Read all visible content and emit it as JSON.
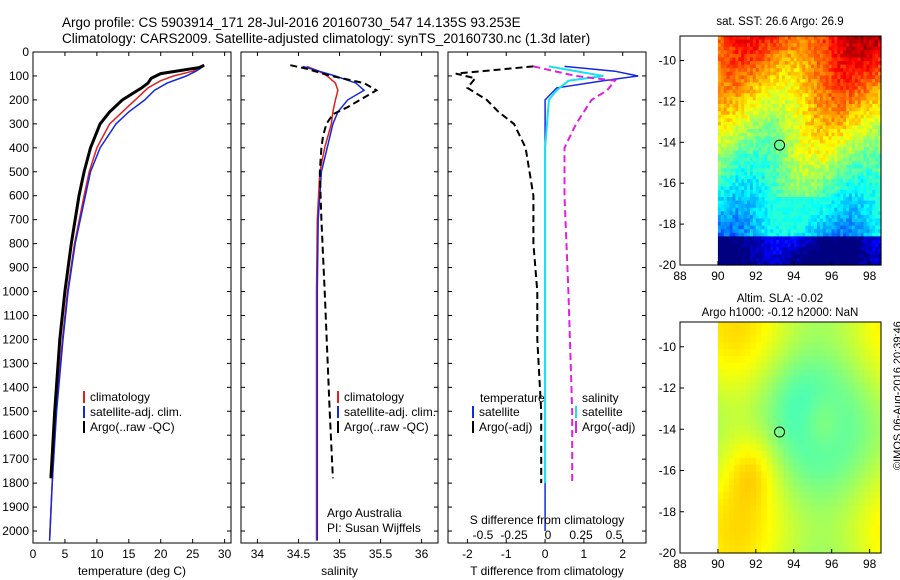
{
  "header": {
    "line1": "Argo profile: CS 5903914_171 28-Jul-2016 20160730_547 14.135S 93.253E",
    "line2": "Climatology: CARS2009. Satellite-adjusted climatology: synTS_20160730.nc (1.3d later)"
  },
  "colors": {
    "climatology": "#e0201c",
    "satellite": "#1428e0",
    "argo": "#000000",
    "sat_salinity": "#18e0f0",
    "argo_adj_salinity": "#e020e0"
  },
  "chart_data": [
    {
      "type": "line",
      "xlabel": "temperature (deg C)",
      "xlim": [
        0,
        31
      ],
      "ylim": [
        2050,
        0
      ],
      "xticks": [
        "0",
        "5",
        "10",
        "15",
        "20",
        "25",
        "30"
      ],
      "yticks": [
        "0",
        "100",
        "200",
        "300",
        "400",
        "500",
        "600",
        "700",
        "800",
        "900",
        "1000",
        "1100",
        "1200",
        "1300",
        "1400",
        "1500",
        "1600",
        "1700",
        "1800",
        "1900",
        "2000"
      ],
      "legend": [
        "climatology",
        "satellite-adj. clim.",
        "Argo(..raw -QC)"
      ],
      "series": [
        {
          "name": "climatology",
          "depth": [
            60,
            80,
            100,
            120,
            150,
            200,
            250,
            300,
            400,
            500,
            600,
            800,
            1000,
            1200,
            1500,
            1800,
            2040
          ],
          "values": [
            26.5,
            25,
            22,
            20,
            18,
            16,
            14,
            12,
            10,
            8.8,
            8,
            6.5,
            5.4,
            4.6,
            3.6,
            3,
            2.6
          ]
        },
        {
          "name": "satellite-adj. clim.",
          "depth": [
            60,
            80,
            100,
            130,
            160,
            200,
            250,
            300,
            400,
            500,
            600,
            800,
            1000,
            1200,
            1500,
            1800,
            2040
          ],
          "values": [
            26.7,
            25.5,
            24,
            21,
            19,
            17.5,
            15,
            13,
            10.5,
            9,
            8.2,
            6.6,
            5.5,
            4.7,
            3.7,
            3,
            2.6
          ]
        },
        {
          "name": "Argo(..raw -QC)",
          "depth": [
            55,
            65,
            90,
            110,
            130,
            150,
            200,
            250,
            300,
            400,
            500,
            600,
            800,
            1000,
            1200,
            1500,
            1780
          ],
          "values": [
            26.8,
            26,
            20,
            18.5,
            18,
            17,
            14,
            12,
            10.5,
            9,
            8,
            7.2,
            6,
            5,
            4.2,
            3.4,
            2.8
          ]
        }
      ]
    },
    {
      "type": "line",
      "xlabel": "salinity",
      "xlim": [
        33.8,
        36.2
      ],
      "ylim": [
        2050,
        0
      ],
      "xticks": [
        "34",
        "34.5",
        "35",
        "35.5",
        "36"
      ],
      "legend": [
        "climatology",
        "satellite-adj. clim.",
        "Argo(..raw -QC)"
      ],
      "annotations": [
        "Argo Australia",
        "PI: Susan Wijffels"
      ],
      "series": [
        {
          "name": "climatology",
          "depth": [
            60,
            80,
            100,
            130,
            160,
            200,
            250,
            300,
            400,
            500,
            700,
            1000,
            1500,
            2040
          ],
          "values": [
            34.6,
            34.75,
            34.85,
            34.95,
            34.98,
            34.95,
            34.92,
            34.9,
            34.82,
            34.76,
            34.73,
            34.72,
            34.72,
            34.72
          ]
        },
        {
          "name": "satellite-adj. clim.",
          "depth": [
            60,
            80,
            100,
            130,
            160,
            200,
            250,
            300,
            400,
            500,
            700,
            1000,
            1500,
            2040
          ],
          "values": [
            34.55,
            34.75,
            34.95,
            35.2,
            35.3,
            35.1,
            34.98,
            34.92,
            34.85,
            34.78,
            34.74,
            34.73,
            34.73,
            34.73
          ]
        },
        {
          "name": "Argo(..raw -QC)",
          "depth": [
            55,
            70,
            100,
            130,
            160,
            200,
            230,
            260,
            300,
            350,
            400,
            500,
            700,
            1000,
            1500,
            1780
          ],
          "values": [
            34.4,
            34.6,
            34.9,
            35.3,
            35.45,
            35.25,
            35.1,
            34.92,
            34.84,
            34.8,
            34.78,
            34.76,
            34.78,
            34.82,
            34.88,
            34.92
          ]
        }
      ]
    },
    {
      "type": "line",
      "xlabel": "T difference from climatology",
      "toplabel": "S difference from climatology",
      "xlim": [
        -2.5,
        2.6
      ],
      "ylim": [
        2050,
        0
      ],
      "xticks": [
        "-2",
        "-1",
        "0",
        "1",
        "2"
      ],
      "topticks": [
        "-0.5",
        "-0.25",
        "0",
        "0.25",
        "0.5"
      ],
      "legend_temperature": [
        "temperature",
        "satellite",
        "Argo(-adj)"
      ],
      "legend_salinity": [
        "salinity",
        "satellite",
        "Argo(-adj)"
      ],
      "series": [
        {
          "name": "satellite",
          "depth": [
            60,
            80,
            100,
            120,
            150,
            200,
            300,
            500,
            800,
            1200,
            1600,
            2000
          ],
          "values": [
            0.5,
            1.8,
            2.4,
            1.5,
            0.3,
            0,
            0,
            0,
            0,
            0,
            0,
            0
          ]
        },
        {
          "name": "Argo(-adj)",
          "depth": [
            60,
            90,
            110,
            150,
            200,
            250,
            300,
            400,
            600,
            800,
            1000,
            1200,
            1500,
            1800
          ],
          "values": [
            -0.3,
            -2.3,
            -1.8,
            -2,
            -1.5,
            -1.2,
            -0.8,
            -0.5,
            -0.3,
            -0.3,
            -0.2,
            -0.2,
            -0.1,
            -0.1
          ]
        },
        {
          "name": "sat-salinity",
          "depth": [
            60,
            100,
            120,
            160,
            200,
            300,
            400,
            600,
            1000,
            1500,
            1800
          ],
          "values": [
            0.1,
            1.5,
            0.6,
            0.3,
            0.1,
            0.05,
            0,
            0,
            0,
            0,
            0
          ]
        },
        {
          "name": "Argo(-adj)-salinity",
          "depth": [
            60,
            100,
            120,
            160,
            200,
            300,
            400,
            600,
            1000,
            1500,
            1800
          ],
          "values": [
            -0.3,
            0.8,
            1.8,
            1.6,
            1.2,
            0.8,
            0.5,
            0.5,
            0.6,
            0.7,
            0.7
          ]
        }
      ]
    },
    {
      "type": "heatmap",
      "title": "sat. SST: 26.6 Argo: 26.9",
      "xlim": [
        88,
        98.6
      ],
      "ylim": [
        -20,
        -8.8
      ],
      "xticks": [
        "88",
        "90",
        "92",
        "94",
        "96",
        "98"
      ],
      "yticks": [
        "-10",
        "-12",
        "-14",
        "-16",
        "-18",
        "-20"
      ],
      "argo_position": {
        "lon": 93.25,
        "lat": -14.135
      }
    },
    {
      "type": "heatmap",
      "title": "Altim. SLA: -0.02",
      "subtitle": "Argo h1000: -0.12 h2000: NaN",
      "xlim": [
        88,
        98.6
      ],
      "ylim": [
        -20,
        -8.8
      ],
      "xticks": [
        "88",
        "90",
        "92",
        "94",
        "96",
        "98"
      ],
      "yticks": [
        "-10",
        "-12",
        "-14",
        "-16",
        "-18",
        "-20"
      ],
      "argo_position": {
        "lon": 93.25,
        "lat": -14.135
      }
    }
  ],
  "footer": {
    "stamp": "©IMOS 06-Aug-2016 20:39:46"
  }
}
